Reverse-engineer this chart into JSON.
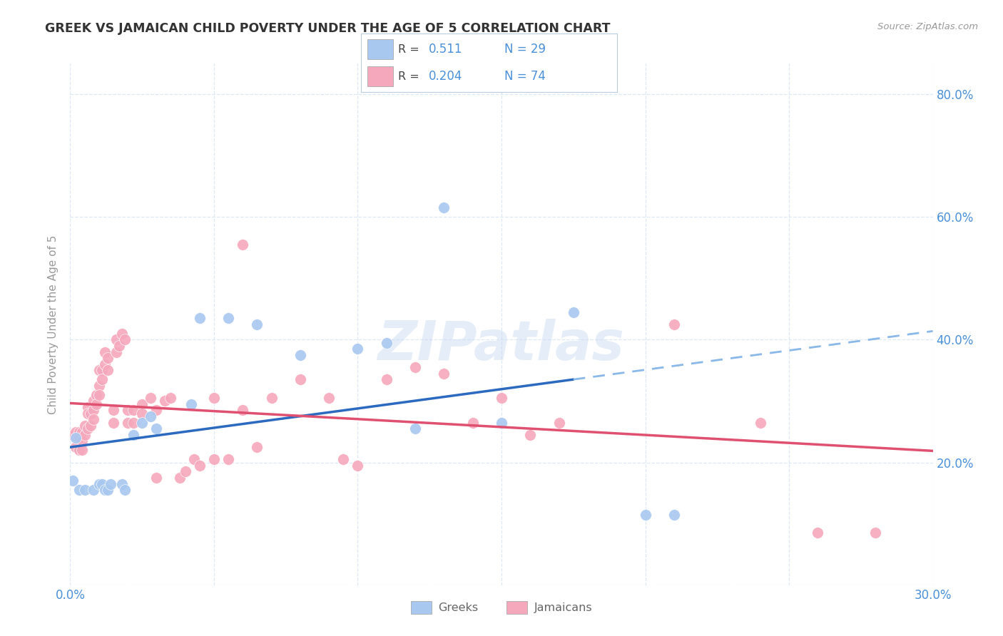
{
  "title": "GREEK VS JAMAICAN CHILD POVERTY UNDER THE AGE OF 5 CORRELATION CHART",
  "source": "Source: ZipAtlas.com",
  "ylabel": "Child Poverty Under the Age of 5",
  "xlim": [
    0.0,
    0.3
  ],
  "ylim": [
    0.0,
    0.85
  ],
  "x_ticks": [
    0.0,
    0.05,
    0.1,
    0.15,
    0.2,
    0.25,
    0.3
  ],
  "y_ticks": [
    0.0,
    0.2,
    0.4,
    0.6,
    0.8
  ],
  "background_color": "#ffffff",
  "grid_color": "#dce8f5",
  "watermark": "ZIPatlas",
  "greek_color": "#a8c8f0",
  "jamaican_color": "#f5a8bc",
  "greek_R": "0.511",
  "greek_N": "29",
  "jamaican_R": "0.204",
  "jamaican_N": "74",
  "greeks_label": "Greeks",
  "jamaicans_label": "Jamaicans",
  "title_color": "#333333",
  "axis_label_color": "#4a90d9",
  "greek_scatter": [
    [
      0.001,
      0.17
    ],
    [
      0.002,
      0.24
    ],
    [
      0.003,
      0.155
    ],
    [
      0.005,
      0.155
    ],
    [
      0.008,
      0.155
    ],
    [
      0.01,
      0.165
    ],
    [
      0.011,
      0.165
    ],
    [
      0.012,
      0.155
    ],
    [
      0.013,
      0.155
    ],
    [
      0.014,
      0.165
    ],
    [
      0.018,
      0.165
    ],
    [
      0.019,
      0.155
    ],
    [
      0.022,
      0.245
    ],
    [
      0.025,
      0.265
    ],
    [
      0.028,
      0.275
    ],
    [
      0.03,
      0.255
    ],
    [
      0.042,
      0.295
    ],
    [
      0.045,
      0.435
    ],
    [
      0.055,
      0.435
    ],
    [
      0.065,
      0.425
    ],
    [
      0.08,
      0.375
    ],
    [
      0.1,
      0.385
    ],
    [
      0.11,
      0.395
    ],
    [
      0.12,
      0.255
    ],
    [
      0.13,
      0.615
    ],
    [
      0.15,
      0.265
    ],
    [
      0.175,
      0.445
    ],
    [
      0.2,
      0.115
    ],
    [
      0.21,
      0.115
    ]
  ],
  "jamaican_scatter": [
    [
      0.001,
      0.245
    ],
    [
      0.002,
      0.25
    ],
    [
      0.002,
      0.225
    ],
    [
      0.003,
      0.25
    ],
    [
      0.003,
      0.24
    ],
    [
      0.003,
      0.22
    ],
    [
      0.004,
      0.25
    ],
    [
      0.004,
      0.235
    ],
    [
      0.004,
      0.22
    ],
    [
      0.005,
      0.26
    ],
    [
      0.005,
      0.245
    ],
    [
      0.006,
      0.29
    ],
    [
      0.006,
      0.28
    ],
    [
      0.006,
      0.255
    ],
    [
      0.007,
      0.28
    ],
    [
      0.007,
      0.26
    ],
    [
      0.008,
      0.3
    ],
    [
      0.008,
      0.285
    ],
    [
      0.008,
      0.27
    ],
    [
      0.009,
      0.31
    ],
    [
      0.009,
      0.295
    ],
    [
      0.01,
      0.35
    ],
    [
      0.01,
      0.325
    ],
    [
      0.01,
      0.31
    ],
    [
      0.011,
      0.35
    ],
    [
      0.011,
      0.335
    ],
    [
      0.012,
      0.38
    ],
    [
      0.012,
      0.36
    ],
    [
      0.013,
      0.37
    ],
    [
      0.013,
      0.35
    ],
    [
      0.015,
      0.285
    ],
    [
      0.015,
      0.265
    ],
    [
      0.016,
      0.4
    ],
    [
      0.016,
      0.38
    ],
    [
      0.017,
      0.39
    ],
    [
      0.018,
      0.41
    ],
    [
      0.019,
      0.4
    ],
    [
      0.02,
      0.285
    ],
    [
      0.02,
      0.265
    ],
    [
      0.022,
      0.285
    ],
    [
      0.022,
      0.265
    ],
    [
      0.025,
      0.295
    ],
    [
      0.025,
      0.28
    ],
    [
      0.028,
      0.305
    ],
    [
      0.03,
      0.175
    ],
    [
      0.03,
      0.285
    ],
    [
      0.033,
      0.3
    ],
    [
      0.035,
      0.305
    ],
    [
      0.038,
      0.175
    ],
    [
      0.04,
      0.185
    ],
    [
      0.043,
      0.205
    ],
    [
      0.045,
      0.195
    ],
    [
      0.05,
      0.305
    ],
    [
      0.05,
      0.205
    ],
    [
      0.055,
      0.205
    ],
    [
      0.06,
      0.285
    ],
    [
      0.06,
      0.555
    ],
    [
      0.065,
      0.225
    ],
    [
      0.07,
      0.305
    ],
    [
      0.08,
      0.335
    ],
    [
      0.09,
      0.305
    ],
    [
      0.095,
      0.205
    ],
    [
      0.1,
      0.195
    ],
    [
      0.11,
      0.335
    ],
    [
      0.12,
      0.355
    ],
    [
      0.13,
      0.345
    ],
    [
      0.14,
      0.265
    ],
    [
      0.15,
      0.305
    ],
    [
      0.16,
      0.245
    ],
    [
      0.17,
      0.265
    ],
    [
      0.21,
      0.425
    ],
    [
      0.24,
      0.265
    ],
    [
      0.26,
      0.085
    ],
    [
      0.28,
      0.085
    ]
  ],
  "greek_line_solid_end": 0.175,
  "greek_line_dash_start": 0.175,
  "greek_line_dash_end": 0.3
}
